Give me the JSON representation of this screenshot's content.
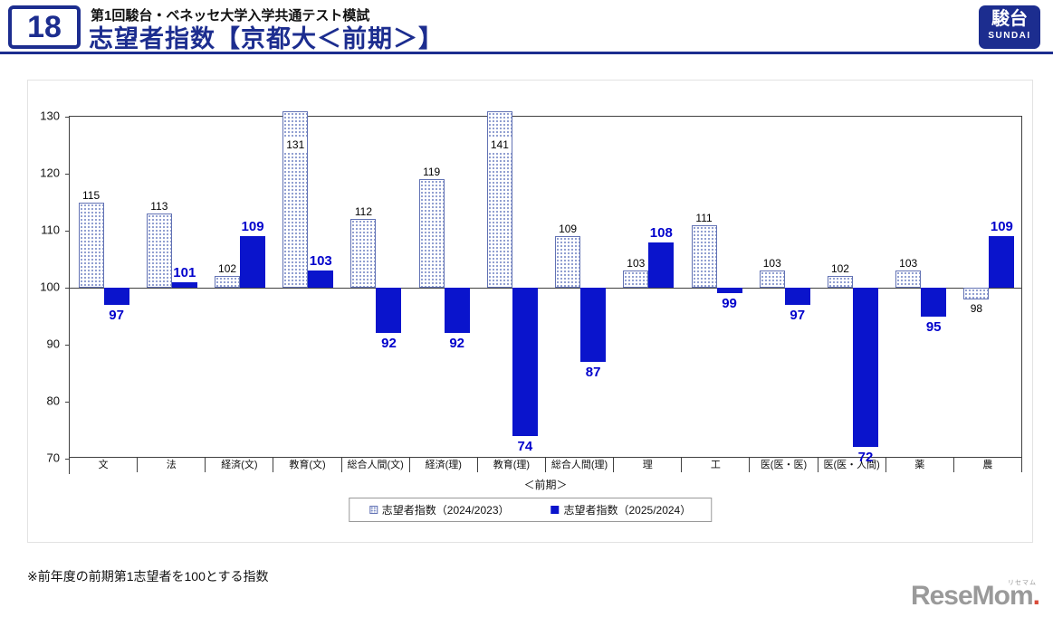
{
  "header": {
    "page_number": "18",
    "subtitle": "第1回駿台・ベネッセ大学入学共通テスト模試",
    "title": "志望者指数【京都大＜前期＞】",
    "logo_main": "駿台",
    "logo_sub": "SUNDAI"
  },
  "chart_data": {
    "type": "bar",
    "title": "志望者指数【京都大＜前期＞】",
    "categories": [
      "文",
      "法",
      "経済(文)",
      "教育(文)",
      "総合人間(文)",
      "経済(理)",
      "教育(理)",
      "総合人間(理)",
      "理",
      "工",
      "医(医・医)",
      "医(医・人間)",
      "薬",
      "農"
    ],
    "series": [
      {
        "name": "志望者指数（2024/2023）",
        "style": "dotted",
        "values": [
          115,
          113,
          102,
          131,
          112,
          119,
          141,
          109,
          103,
          111,
          103,
          102,
          103,
          98
        ]
      },
      {
        "name": "志望者指数（2025/2024）",
        "style": "solid",
        "values": [
          97,
          101,
          109,
          103,
          92,
          92,
          74,
          87,
          108,
          99,
          97,
          72,
          95,
          109
        ]
      }
    ],
    "baseline": 100,
    "ylim": [
      70,
      130
    ],
    "yticks": [
      130,
      120,
      110,
      100,
      90,
      80,
      70
    ],
    "xlabel": "＜前期＞",
    "legend_position": "bottom",
    "grid": false,
    "colors": {
      "brand_blue": "#1c2d8f",
      "solid_bar": "#0a14cc",
      "solid_label": "#0000cc",
      "dotted_bar_dot": "#7e8fc9",
      "dotted_bar_border": "#6272b4"
    }
  },
  "footnote": "※前年度の前期第1志望者を100とする指数",
  "watermark": {
    "text": "ReseMom",
    "dot": ".",
    "ruby": "リセマム"
  }
}
